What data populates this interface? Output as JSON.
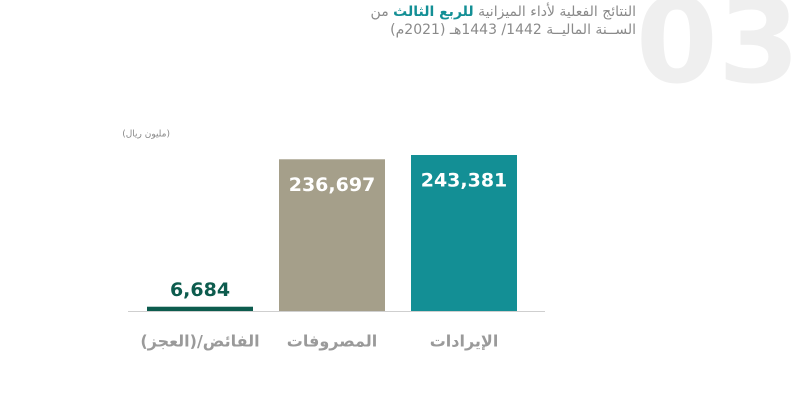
{
  "chart_data": {
    "type": "bar",
    "section_number": "03",
    "title": {
      "before": "النتائج الفعلية لأداء الميزانية ",
      "emphasis": "للربع الثالث",
      "after": " من"
    },
    "subtitle": "الســنة الماليــة 1442/ 1443هـ (2021م)",
    "unit": "(مليون ريال)",
    "categories": [
      "الفائض/(العجز)",
      "المصروفات",
      "الإيرادات"
    ],
    "values": [
      6684,
      236697,
      243381
    ],
    "value_labels": [
      "6,684",
      "236,697",
      "243,381"
    ],
    "colors": [
      "#0d5c4e",
      "#a59f8a",
      "#138f95"
    ]
  }
}
